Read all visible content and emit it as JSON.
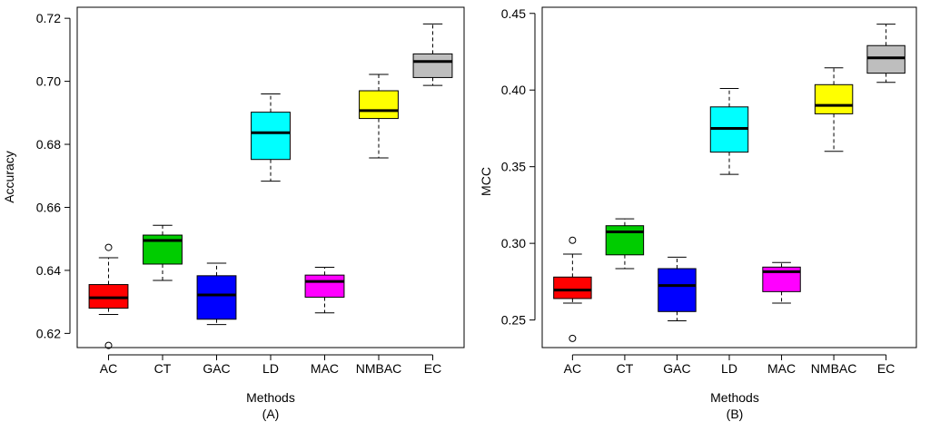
{
  "chart_data": [
    {
      "type": "box",
      "panel": "(A)",
      "xlabel": "Methods",
      "ylabel": "Accuracy",
      "ylim": [
        0.6155,
        0.7235
      ],
      "yticks": [
        0.62,
        0.64,
        0.66,
        0.68,
        0.7,
        0.72
      ],
      "ytick_labels": [
        "0.62",
        "0.64",
        "0.66",
        "0.68",
        "0.70",
        "0.72"
      ],
      "categories": [
        "AC",
        "CT",
        "GAC",
        "LD",
        "MAC",
        "NMBAC",
        "EC"
      ],
      "colors": [
        "#ff0000",
        "#00cc00",
        "#0000ff",
        "#00ffff",
        "#ff00ff",
        "#ffff00",
        "#bebebe"
      ],
      "boxes": [
        {
          "whisker_low": 0.626,
          "q1": 0.628,
          "median": 0.6313,
          "q3": 0.6355,
          "whisker_high": 0.644,
          "outliers": [
            0.6473,
            0.6162
          ]
        },
        {
          "whisker_low": 0.6368,
          "q1": 0.642,
          "median": 0.6495,
          "q3": 0.6512,
          "whisker_high": 0.6543,
          "outliers": []
        },
        {
          "whisker_low": 0.6228,
          "q1": 0.6245,
          "median": 0.6322,
          "q3": 0.6383,
          "whisker_high": 0.6423,
          "outliers": []
        },
        {
          "whisker_low": 0.6683,
          "q1": 0.6752,
          "median": 0.6837,
          "q3": 0.6902,
          "whisker_high": 0.696,
          "outliers": []
        },
        {
          "whisker_low": 0.6265,
          "q1": 0.6315,
          "median": 0.6365,
          "q3": 0.6385,
          "whisker_high": 0.641,
          "outliers": []
        },
        {
          "whisker_low": 0.6757,
          "q1": 0.6882,
          "median": 0.6907,
          "q3": 0.697,
          "whisker_high": 0.7022,
          "outliers": []
        },
        {
          "whisker_low": 0.6987,
          "q1": 0.7012,
          "median": 0.7063,
          "q3": 0.7087,
          "whisker_high": 0.7182,
          "outliers": []
        }
      ]
    },
    {
      "type": "box",
      "panel": "(B)",
      "xlabel": "Methods",
      "ylabel": "MCC",
      "ylim": [
        0.232,
        0.454
      ],
      "yticks": [
        0.25,
        0.3,
        0.35,
        0.4,
        0.45
      ],
      "ytick_labels": [
        "0.25",
        "0.30",
        "0.35",
        "0.40",
        "0.45"
      ],
      "categories": [
        "AC",
        "CT",
        "GAC",
        "LD",
        "MAC",
        "NMBAC",
        "EC"
      ],
      "colors": [
        "#ff0000",
        "#00cc00",
        "#0000ff",
        "#00ffff",
        "#ff00ff",
        "#ffff00",
        "#bebebe"
      ],
      "boxes": [
        {
          "whisker_low": 0.261,
          "q1": 0.264,
          "median": 0.2695,
          "q3": 0.278,
          "whisker_high": 0.293,
          "outliers": [
            0.302,
            0.238
          ]
        },
        {
          "whisker_low": 0.2835,
          "q1": 0.2925,
          "median": 0.3075,
          "q3": 0.3115,
          "whisker_high": 0.316,
          "outliers": []
        },
        {
          "whisker_low": 0.2495,
          "q1": 0.2555,
          "median": 0.2725,
          "q3": 0.2835,
          "whisker_high": 0.291,
          "outliers": []
        },
        {
          "whisker_low": 0.345,
          "q1": 0.3595,
          "median": 0.375,
          "q3": 0.389,
          "whisker_high": 0.401,
          "outliers": []
        },
        {
          "whisker_low": 0.261,
          "q1": 0.2685,
          "median": 0.2815,
          "q3": 0.2845,
          "whisker_high": 0.2875,
          "outliers": []
        },
        {
          "whisker_low": 0.36,
          "q1": 0.3845,
          "median": 0.39,
          "q3": 0.4035,
          "whisker_high": 0.4145,
          "outliers": []
        },
        {
          "whisker_low": 0.405,
          "q1": 0.411,
          "median": 0.421,
          "q3": 0.429,
          "whisker_high": 0.443,
          "outliers": []
        }
      ]
    }
  ]
}
